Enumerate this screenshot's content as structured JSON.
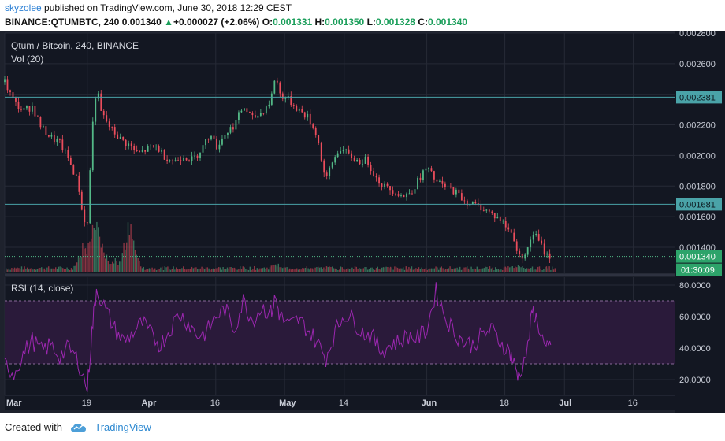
{
  "header": {
    "author": "skyzolee",
    "published": "published on TradingView.com, June 30, 2018 12:29 CEST",
    "symbol": "BINANCE:QTUMBTC, 240",
    "last": "0.001340",
    "change": "+0.000027 (+2.06%)",
    "o_label": "O:",
    "o_value": "0.001331",
    "h_label": "H:",
    "h_value": "0.001350",
    "l_label": "L:",
    "l_value": "0.001328",
    "c_label": "C:",
    "c_value": "0.001340"
  },
  "footer": {
    "created_with": "Created with",
    "brand": "TradingView"
  },
  "colors": {
    "bg": "#131722",
    "up": "#53b987",
    "down": "#eb4d5c",
    "rsi": "#9c27b0",
    "band": "#2a1a3a",
    "hline": "#4aa3a8"
  },
  "chart_data": [
    {
      "type": "candlestick",
      "title": "Qtum / Bitcoin, 240, BINANCE",
      "volume_label": "Vol (20)",
      "ylim": [
        0.00123,
        0.0028
      ],
      "y_ticks": [
        "0.002800",
        "0.002600",
        "0.002400",
        "0.002200",
        "0.002000",
        "0.001800",
        "0.001600",
        "0.001400"
      ],
      "x_ticks": [
        "Mar",
        "19",
        "Apr",
        "16",
        "May",
        "14",
        "Jun",
        "18",
        "Jul",
        "16"
      ],
      "x_tick_days": [
        0,
        18,
        31,
        46,
        61,
        74,
        92,
        109,
        122,
        137
      ],
      "date_range_days": [
        0,
        146
      ],
      "horizontal_lines": [
        {
          "label": "0.002381",
          "value": 0.002381,
          "color": "#4aa3a8"
        },
        {
          "label": "0.001681",
          "value": 0.001681,
          "color": "#4aa3a8"
        }
      ],
      "last_price": {
        "label": "0.001340",
        "value": 0.00134
      },
      "countdown": "01:30:09",
      "close_path": [
        [
          0,
          0.00248
        ],
        [
          2,
          0.00235
        ],
        [
          4,
          0.00229
        ],
        [
          6,
          0.00232
        ],
        [
          8,
          0.00218
        ],
        [
          10,
          0.00212
        ],
        [
          12,
          0.00208
        ],
        [
          14,
          0.00197
        ],
        [
          16,
          0.00182
        ],
        [
          17,
          0.0016
        ],
        [
          18,
          0.00155
        ],
        [
          19,
          0.00215
        ],
        [
          20,
          0.00245
        ],
        [
          21,
          0.00228
        ],
        [
          23,
          0.00218
        ],
        [
          25,
          0.00211
        ],
        [
          27,
          0.00207
        ],
        [
          29,
          0.00201
        ],
        [
          31,
          0.00204
        ],
        [
          33,
          0.00206
        ],
        [
          35,
          0.00199
        ],
        [
          37,
          0.00196
        ],
        [
          39,
          0.002
        ],
        [
          41,
          0.00197
        ],
        [
          43,
          0.00205
        ],
        [
          45,
          0.00215
        ],
        [
          46,
          0.00205
        ],
        [
          48,
          0.00214
        ],
        [
          50,
          0.0022
        ],
        [
          52,
          0.00232
        ],
        [
          54,
          0.00224
        ],
        [
          56,
          0.00228
        ],
        [
          58,
          0.00236
        ],
        [
          59,
          0.00253
        ],
        [
          60,
          0.0024
        ],
        [
          62,
          0.00236
        ],
        [
          64,
          0.0023
        ],
        [
          66,
          0.00225
        ],
        [
          68,
          0.00214
        ],
        [
          70,
          0.00182
        ],
        [
          71,
          0.00193
        ],
        [
          73,
          0.00205
        ],
        [
          75,
          0.002
        ],
        [
          77,
          0.00196
        ],
        [
          79,
          0.00197
        ],
        [
          81,
          0.00185
        ],
        [
          83,
          0.00179
        ],
        [
          85,
          0.00177
        ],
        [
          87,
          0.00173
        ],
        [
          89,
          0.00178
        ],
        [
          91,
          0.00188
        ],
        [
          92,
          0.00192
        ],
        [
          94,
          0.00183
        ],
        [
          96,
          0.00179
        ],
        [
          98,
          0.00177
        ],
        [
          100,
          0.00171
        ],
        [
          102,
          0.00168
        ],
        [
          104,
          0.00166
        ],
        [
          106,
          0.00162
        ],
        [
          108,
          0.00158
        ],
        [
          110,
          0.00151
        ],
        [
          111,
          0.00146
        ],
        [
          112,
          0.00133
        ],
        [
          114,
          0.00138
        ],
        [
          115,
          0.0015
        ],
        [
          116,
          0.00146
        ],
        [
          118,
          0.00135
        ],
        [
          119,
          0.00134
        ]
      ],
      "volume_spikes": [
        [
          17,
          0.55
        ],
        [
          18,
          0.3
        ],
        [
          19,
          1.0
        ],
        [
          20,
          0.85
        ],
        [
          21,
          0.6
        ],
        [
          24,
          0.3
        ],
        [
          27,
          0.95
        ],
        [
          28,
          0.4
        ],
        [
          59,
          0.2
        ],
        [
          71,
          0.12
        ],
        [
          112,
          0.15
        ]
      ]
    },
    {
      "type": "line",
      "title": "RSI (14, close)",
      "ylim": [
        10,
        85
      ],
      "y_ticks": [
        "80.0000",
        "60.0000",
        "40.0000",
        "20.0000"
      ],
      "bands": [
        70,
        30
      ],
      "x": [
        0,
        2,
        4,
        6,
        8,
        10,
        12,
        14,
        16,
        18,
        19,
        20,
        22,
        24,
        26,
        28,
        30,
        32,
        34,
        36,
        38,
        40,
        42,
        44,
        46,
        48,
        50,
        52,
        54,
        56,
        58,
        59,
        60,
        62,
        64,
        66,
        68,
        70,
        72,
        74,
        76,
        78,
        80,
        82,
        84,
        86,
        88,
        90,
        92,
        94,
        96,
        98,
        100,
        102,
        104,
        106,
        108,
        110,
        111,
        112,
        114,
        115,
        116,
        118,
        119
      ],
      "values": [
        30,
        24,
        36,
        45,
        38,
        42,
        35,
        40,
        32,
        14,
        50,
        78,
        64,
        52,
        44,
        50,
        56,
        48,
        42,
        52,
        62,
        56,
        48,
        50,
        60,
        65,
        52,
        70,
        58,
        66,
        62,
        72,
        60,
        54,
        58,
        52,
        44,
        34,
        50,
        62,
        58,
        50,
        48,
        38,
        42,
        44,
        48,
        46,
        52,
        76,
        60,
        50,
        44,
        42,
        48,
        52,
        44,
        38,
        30,
        22,
        40,
        64,
        58,
        38,
        42
      ]
    }
  ]
}
